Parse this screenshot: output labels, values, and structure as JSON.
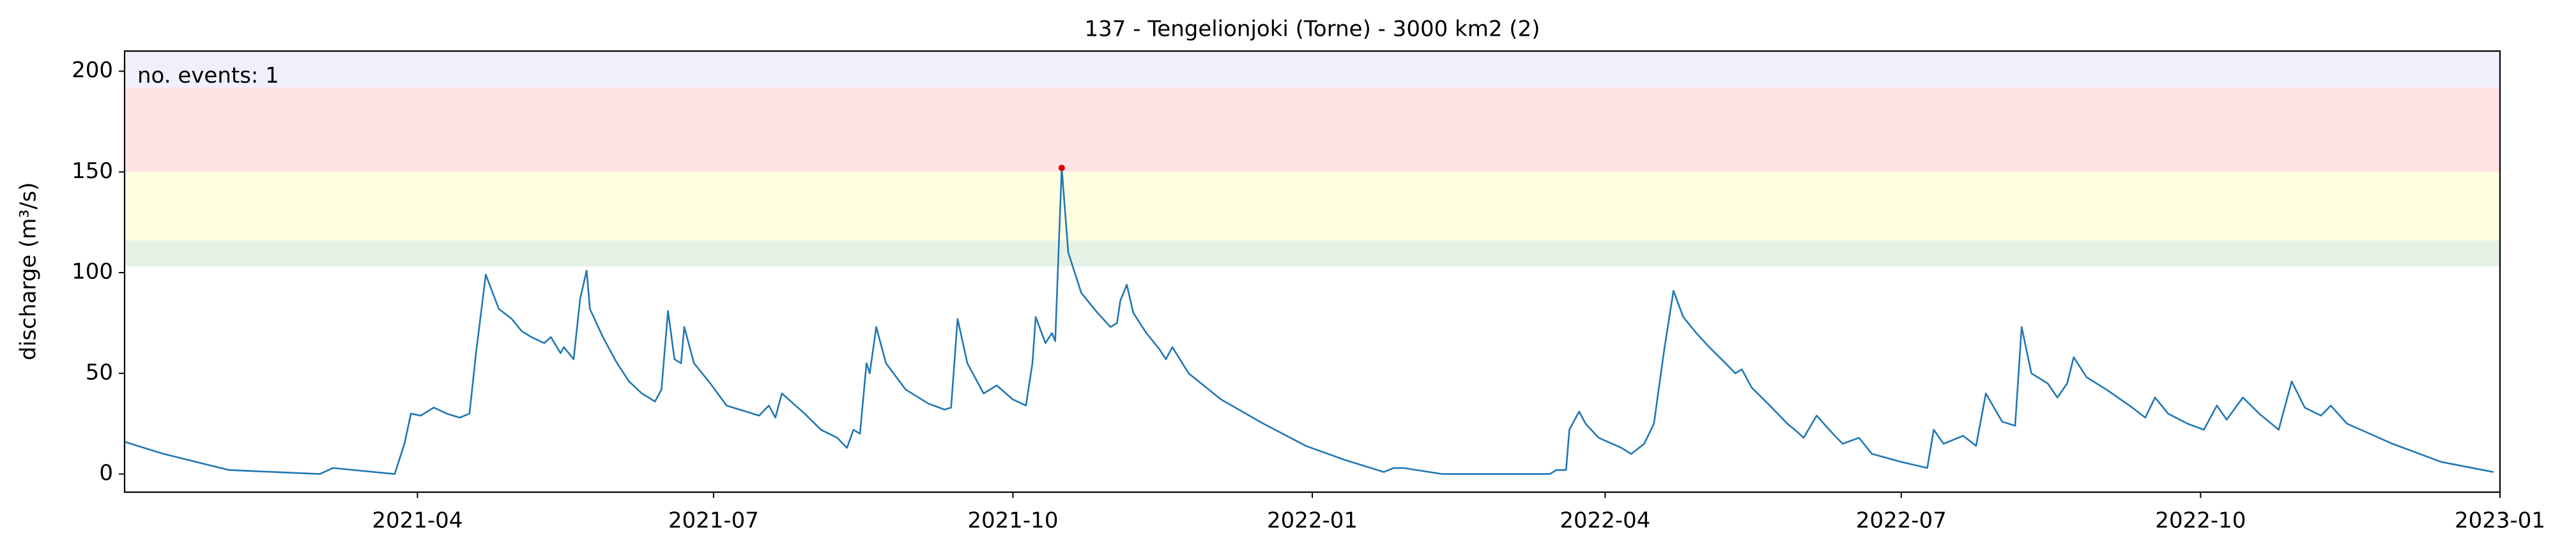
{
  "chart_data": {
    "type": "line",
    "title": "137 - Tengelionjoki (Torne) - 3000 km2 (2)",
    "y_label": "discharge (m³/s)",
    "annotation": "no. events: 1",
    "annotation_color": "#e00000",
    "xlim": [
      "2021-01-01",
      "2023-01-01"
    ],
    "xticks": [
      {
        "value": "2021-04-01",
        "label": "2021-04"
      },
      {
        "value": "2021-07-01",
        "label": "2021-07"
      },
      {
        "value": "2021-10-01",
        "label": "2021-10"
      },
      {
        "value": "2022-01-01",
        "label": "2022-01"
      },
      {
        "value": "2022-04-01",
        "label": "2022-04"
      },
      {
        "value": "2022-07-01",
        "label": "2022-07"
      },
      {
        "value": "2022-10-01",
        "label": "2022-10"
      },
      {
        "value": "2023-01-01",
        "label": "2023-01"
      }
    ],
    "ylim": [
      -9,
      210
    ],
    "yticks": [
      0,
      50,
      100,
      150,
      200
    ],
    "grid": false,
    "bands": [
      {
        "range": [
          103,
          116
        ],
        "color": "#e6f2e6"
      },
      {
        "range": [
          116,
          150
        ],
        "color": "#ffffe2"
      },
      {
        "range": [
          150,
          192
        ],
        "color": "#ffe2e4"
      },
      {
        "range": [
          192,
          210
        ],
        "color": "#f1effb"
      }
    ],
    "events": {
      "x": [
        "2021-10-16"
      ],
      "values": [
        152
      ],
      "color": "#e00000"
    },
    "series": [
      {
        "color": "#1f77b4",
        "x": [
          "2021-01-01",
          "2021-01-13",
          "2021-02-02",
          "2021-03-02",
          "2021-03-06",
          "2021-03-25",
          "2021-03-28",
          "2021-03-30",
          "2021-04-02",
          "2021-04-06",
          "2021-04-10",
          "2021-04-14",
          "2021-04-17",
          "2021-04-19",
          "2021-04-22",
          "2021-04-26",
          "2021-04-30",
          "2021-05-03",
          "2021-05-06",
          "2021-05-10",
          "2021-05-12",
          "2021-05-15",
          "2021-05-16",
          "2021-05-19",
          "2021-05-21",
          "2021-05-23",
          "2021-05-24",
          "2021-05-28",
          "2021-06-01",
          "2021-06-05",
          "2021-06-09",
          "2021-06-13",
          "2021-06-15",
          "2021-06-17",
          "2021-06-19",
          "2021-06-21",
          "2021-06-22",
          "2021-06-25",
          "2021-06-30",
          "2021-07-05",
          "2021-07-11",
          "2021-07-15",
          "2021-07-18",
          "2021-07-20",
          "2021-07-22",
          "2021-07-29",
          "2021-08-03",
          "2021-08-08",
          "2021-08-11",
          "2021-08-13",
          "2021-08-15",
          "2021-08-17",
          "2021-08-18",
          "2021-08-20",
          "2021-08-23",
          "2021-08-29",
          "2021-09-05",
          "2021-09-10",
          "2021-09-12",
          "2021-09-14",
          "2021-09-17",
          "2021-09-22",
          "2021-09-26",
          "2021-10-01",
          "2021-10-05",
          "2021-10-07",
          "2021-10-08",
          "2021-10-11",
          "2021-10-13",
          "2021-10-14",
          "2021-10-16",
          "2021-10-18",
          "2021-10-22",
          "2021-10-27",
          "2021-10-31",
          "2021-11-02",
          "2021-11-03",
          "2021-11-05",
          "2021-11-07",
          "2021-11-11",
          "2021-11-15",
          "2021-11-17",
          "2021-11-19",
          "2021-11-24",
          "2021-12-04",
          "2021-12-17",
          "2021-12-30",
          "2022-01-11",
          "2022-01-23",
          "2022-01-26",
          "2022-01-29",
          "2022-02-10",
          "2022-03-15",
          "2022-03-17",
          "2022-03-20",
          "2022-03-21",
          "2022-03-24",
          "2022-03-26",
          "2022-03-30",
          "2022-04-06",
          "2022-04-09",
          "2022-04-13",
          "2022-04-16",
          "2022-04-19",
          "2022-04-22",
          "2022-04-25",
          "2022-04-29",
          "2022-05-03",
          "2022-05-08",
          "2022-05-11",
          "2022-05-13",
          "2022-05-16",
          "2022-05-21",
          "2022-05-27",
          "2022-05-30",
          "2022-06-01",
          "2022-06-05",
          "2022-06-10",
          "2022-06-13",
          "2022-06-18",
          "2022-06-22",
          "2022-07-01",
          "2022-07-09",
          "2022-07-11",
          "2022-07-14",
          "2022-07-20",
          "2022-07-24",
          "2022-07-27",
          "2022-08-01",
          "2022-08-05",
          "2022-08-07",
          "2022-08-10",
          "2022-08-15",
          "2022-08-18",
          "2022-08-21",
          "2022-08-23",
          "2022-08-27",
          "2022-09-02",
          "2022-09-10",
          "2022-09-14",
          "2022-09-17",
          "2022-09-21",
          "2022-09-27",
          "2022-10-02",
          "2022-10-06",
          "2022-10-09",
          "2022-10-14",
          "2022-10-19",
          "2022-10-25",
          "2022-10-29",
          "2022-11-02",
          "2022-11-07",
          "2022-11-10",
          "2022-11-15",
          "2022-11-29",
          "2022-12-14",
          "2022-12-30"
        ],
        "values": [
          16,
          10,
          2,
          0,
          3,
          0,
          15,
          30,
          29,
          33,
          30,
          28,
          30,
          60,
          99,
          82,
          77,
          71,
          68,
          65,
          68,
          60,
          63,
          57,
          87,
          101,
          82,
          68,
          56,
          46,
          40,
          36,
          42,
          81,
          57,
          55,
          73,
          55,
          45,
          34,
          31,
          29,
          34,
          28,
          40,
          30,
          22,
          18,
          13,
          22,
          20,
          55,
          50,
          73,
          55,
          42,
          35,
          32,
          33,
          77,
          55,
          40,
          44,
          37,
          34,
          55,
          78,
          65,
          70,
          66,
          152,
          110,
          90,
          80,
          73,
          75,
          86,
          94,
          80,
          70,
          62,
          57,
          63,
          50,
          37,
          25,
          14,
          7,
          1,
          3,
          3,
          0,
          0,
          2,
          2,
          22,
          31,
          25,
          18,
          13,
          10,
          15,
          25,
          60,
          91,
          78,
          70,
          63,
          55,
          50,
          52,
          43,
          35,
          25,
          21,
          18,
          29,
          20,
          15,
          18,
          10,
          6,
          3,
          22,
          15,
          19,
          14,
          40,
          26,
          24,
          73,
          50,
          45,
          38,
          45,
          58,
          48,
          42,
          33,
          28,
          38,
          30,
          25,
          22,
          34,
          27,
          38,
          30,
          22,
          46,
          33,
          29,
          34,
          25,
          15,
          6,
          1
        ]
      }
    ]
  }
}
